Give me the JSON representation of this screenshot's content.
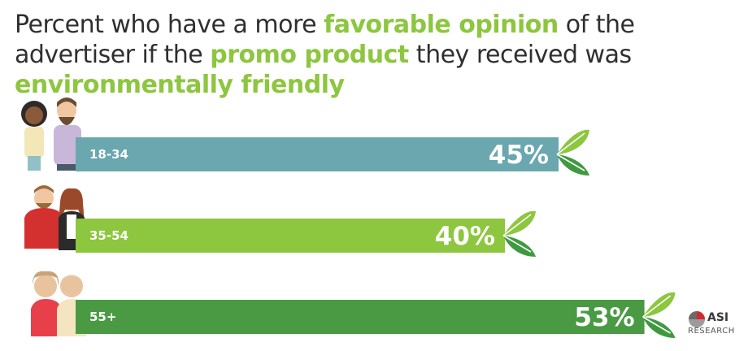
{
  "title": {
    "p1": "Percent who have a more ",
    "h1": "favorable opinion",
    "p2": " of the advertiser if the ",
    "h2": "promo product",
    "p3": " they received was ",
    "h3": "environmentally friendly"
  },
  "chart_data": {
    "type": "bar",
    "orientation": "horizontal",
    "categories": [
      "18-34",
      "35-54",
      "55+"
    ],
    "values": [
      45,
      40,
      53
    ],
    "value_labels": [
      "45%",
      "40%",
      "53%"
    ],
    "colors": [
      "#6aa7ae",
      "#8dc63f",
      "#4a9a44"
    ],
    "xlim": [
      0,
      100
    ]
  },
  "logo": {
    "name": "ASI",
    "sub": "RESEARCH"
  },
  "colors": {
    "accent": "#8dc63f",
    "leaf_dark": "#3f9a3f",
    "leaf_light": "#8dc63f"
  },
  "icons": [
    "young-people-icon",
    "middle-aged-people-icon",
    "senior-people-icon",
    "leaf-icon",
    "asi-logo-icon"
  ]
}
